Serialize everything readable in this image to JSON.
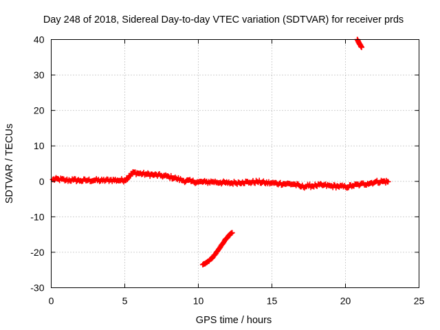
{
  "chart_data": {
    "type": "scatter",
    "title": "Day 248 of 2018, Sidereal Day-to-day VTEC variation (SDTVAR) for receiver prds",
    "xlabel": "GPS time / hours",
    "ylabel": "SDTVAR / TECUs",
    "xlim": [
      0,
      25
    ],
    "ylim": [
      -30,
      40
    ],
    "xticks": [
      0,
      5,
      10,
      15,
      20,
      25
    ],
    "yticks": [
      -30,
      -20,
      -10,
      0,
      10,
      20,
      30,
      40
    ],
    "xtick_labels": [
      "0",
      "5",
      "10",
      "15",
      "20",
      "25"
    ],
    "ytick_labels": [
      "-30",
      "-20",
      "-10",
      "0",
      "10",
      "20",
      "30",
      "40"
    ],
    "grid": true,
    "marker": "+",
    "color": "#ff0000",
    "series": [
      {
        "name": "main",
        "x": [
          0.1,
          0.5,
          1.0,
          1.5,
          2.0,
          2.5,
          3.0,
          3.5,
          4.0,
          4.5,
          5.0,
          5.3,
          5.6,
          6.0,
          6.5,
          7.0,
          7.5,
          8.0,
          8.5,
          9.0,
          9.5,
          10.0,
          10.5,
          11.0,
          11.5,
          12.0,
          12.5,
          13.0,
          13.5,
          14.0,
          14.5,
          15.0,
          15.5,
          16.0,
          16.5,
          17.0,
          17.5,
          18.0,
          18.5,
          19.0,
          19.5,
          20.0,
          20.5,
          21.0,
          21.5,
          22.0,
          22.5,
          22.9
        ],
        "y": [
          0.5,
          0.6,
          0.3,
          0.4,
          0.2,
          0.3,
          0.3,
          0.2,
          0.4,
          0.3,
          0.3,
          1.5,
          2.5,
          2.2,
          2.0,
          1.8,
          1.6,
          1.3,
          0.8,
          0.2,
          0.0,
          -0.2,
          -0.2,
          -0.1,
          -0.3,
          -0.5,
          -0.4,
          -0.2,
          -0.3,
          -0.1,
          -0.4,
          -0.5,
          -0.6,
          -0.7,
          -0.8,
          -1.5,
          -1.3,
          -1.2,
          -1.1,
          -1.3,
          -1.4,
          -1.6,
          -1.2,
          -0.9,
          -0.6,
          -0.2,
          0.0,
          -0.1
        ]
      },
      {
        "name": "arc-low",
        "x": [
          10.3,
          10.6,
          10.9,
          11.2,
          11.5,
          11.8,
          12.1,
          12.3
        ],
        "y": [
          -23.5,
          -22.8,
          -21.8,
          -20.3,
          -18.5,
          -16.6,
          -15.2,
          -14.5
        ]
      },
      {
        "name": "arc-high",
        "x": [
          20.8,
          20.95,
          21.1
        ],
        "y": [
          40.0,
          38.8,
          37.8
        ]
      }
    ]
  }
}
